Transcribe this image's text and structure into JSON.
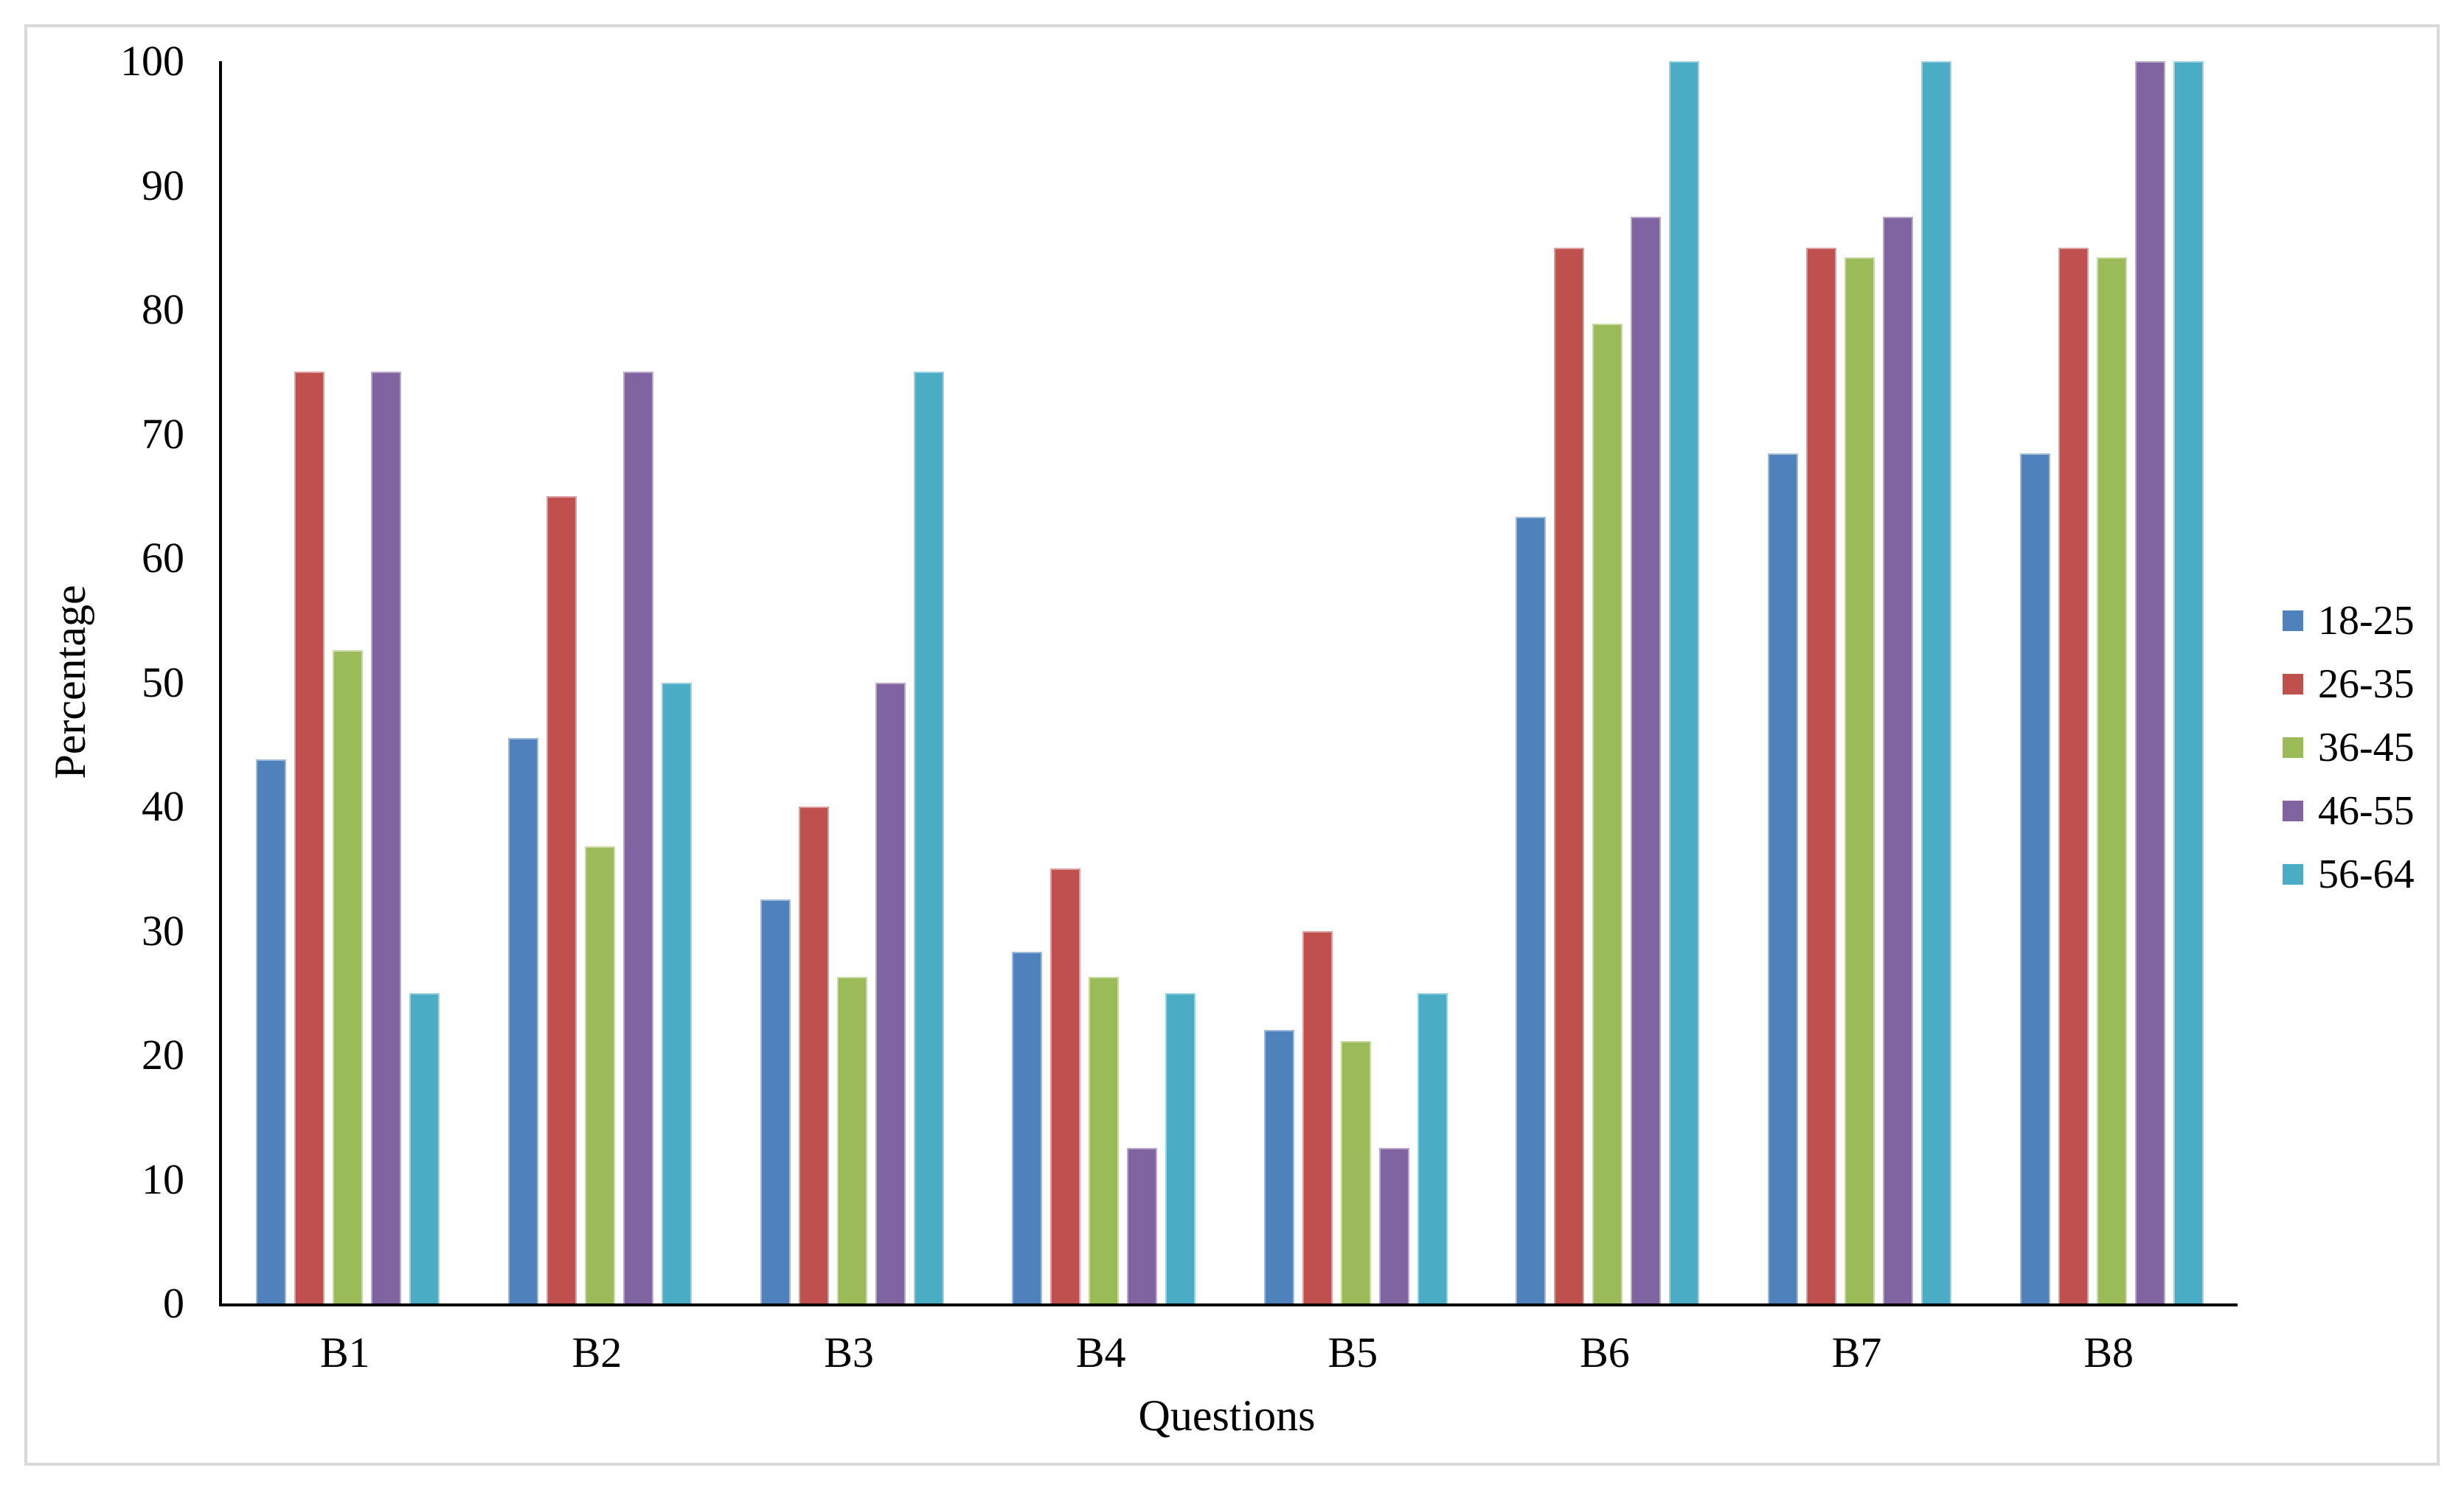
{
  "chart_data": {
    "type": "bar",
    "title": "",
    "categories": [
      "B1",
      "B2",
      "B3",
      "B4",
      "B5",
      "B6",
      "B7",
      "B8"
    ],
    "series": [
      {
        "name": "18-25",
        "color": "#4F81BD",
        "values": [
          43.8,
          45.5,
          32.5,
          28.3,
          22.0,
          63.3,
          68.4,
          68.4
        ]
      },
      {
        "name": "26-35",
        "color": "#C0504D",
        "values": [
          75,
          65,
          40,
          35,
          30,
          85,
          85,
          85
        ]
      },
      {
        "name": "36-45",
        "color": "#9BBB59",
        "values": [
          52.6,
          36.8,
          26.3,
          26.3,
          21.1,
          78.9,
          84.2,
          84.2
        ]
      },
      {
        "name": "46-55",
        "color": "#8064A2",
        "values": [
          75,
          75,
          50,
          12.5,
          12.5,
          87.5,
          87.5,
          100
        ]
      },
      {
        "name": "56-64",
        "color": "#4BACC6",
        "values": [
          25,
          50,
          75,
          25,
          25,
          100,
          100,
          100
        ]
      }
    ],
    "xlabel": "Questions",
    "ylabel": "Percentage",
    "ylim": [
      0,
      100
    ],
    "yticks": [
      0,
      10,
      20,
      30,
      40,
      50,
      60,
      70,
      80,
      90,
      100
    ],
    "grid": false,
    "legend_position": "right-middle"
  },
  "frame": {
    "border_color": "#D9D9D9",
    "axis_line_color": "#000000",
    "background": "#FFFFFF"
  }
}
